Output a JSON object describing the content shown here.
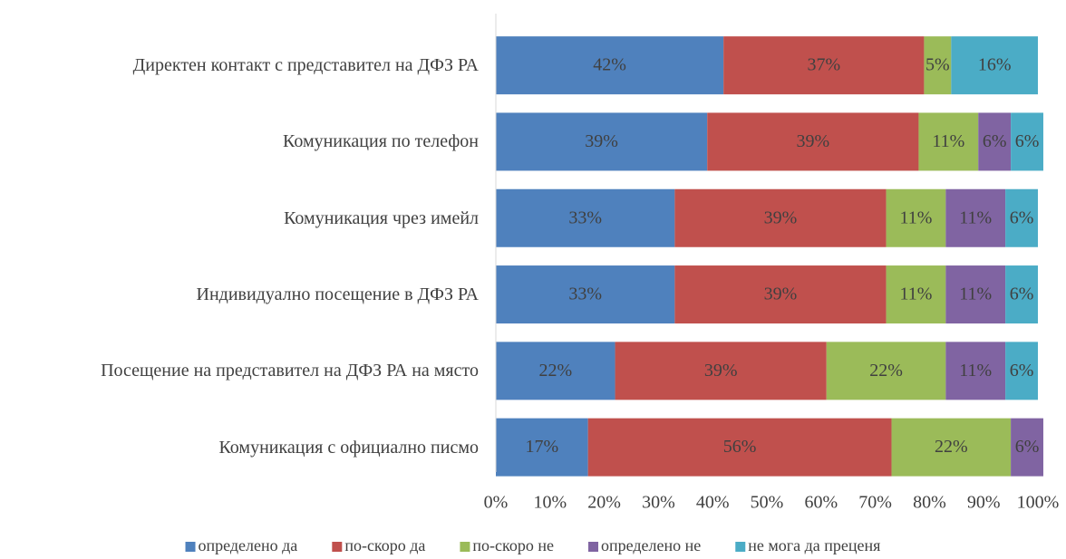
{
  "chart_data": {
    "type": "stacked_barh",
    "categories": [
      "Директен контакт с представител на ДФЗ РА",
      "Комуникация по телефон",
      "Комуникация чрез имейл",
      "Индивидуално посещение в ДФЗ РА",
      "Посещение на представител на ДФЗ РА на място",
      "Комуникация с официално писмо"
    ],
    "series": [
      {
        "name": "определено да",
        "color": "#4f81bd",
        "values": [
          42,
          39,
          33,
          33,
          22,
          17
        ],
        "value_labels": [
          "42%",
          "39%",
          "33%",
          "33%",
          "22%",
          "17%"
        ]
      },
      {
        "name": "по-скоро да",
        "color": "#c0504d",
        "values": [
          37,
          39,
          39,
          39,
          39,
          56
        ],
        "value_labels": [
          "37%",
          "39%",
          "39%",
          "39%",
          "39%",
          "56%"
        ]
      },
      {
        "name": "по-скоро не",
        "color": "#9bbb59",
        "values": [
          5,
          11,
          11,
          11,
          22,
          22
        ],
        "value_labels": [
          "5%",
          "11%",
          "11%",
          "11%",
          "22%",
          "22%"
        ]
      },
      {
        "name": "определено не",
        "color": "#8064a2",
        "values": [
          null,
          6,
          11,
          11,
          11,
          6
        ],
        "value_labels": [
          null,
          "6%",
          "11%",
          "11%",
          "11%",
          "6%"
        ]
      },
      {
        "name": "не мога да преценя",
        "color": "#4bacc6",
        "values": [
          16,
          6,
          6,
          6,
          6,
          null
        ],
        "value_labels": [
          "16%",
          "6%",
          "6%",
          "6%",
          "6%",
          null
        ]
      }
    ],
    "xlim": [
      0,
      100
    ],
    "xticks": [
      {
        "value": 0,
        "label": "0%"
      },
      {
        "value": 10,
        "label": "10%"
      },
      {
        "value": 20,
        "label": "20%"
      },
      {
        "value": 30,
        "label": "30%"
      },
      {
        "value": 40,
        "label": "40%"
      },
      {
        "value": 50,
        "label": "50%"
      },
      {
        "value": 60,
        "label": "60%"
      },
      {
        "value": 70,
        "label": "70%"
      },
      {
        "value": 80,
        "label": "80%"
      },
      {
        "value": 90,
        "label": "90%"
      },
      {
        "value": 100,
        "label": "100%"
      }
    ],
    "legend": "bottom"
  }
}
